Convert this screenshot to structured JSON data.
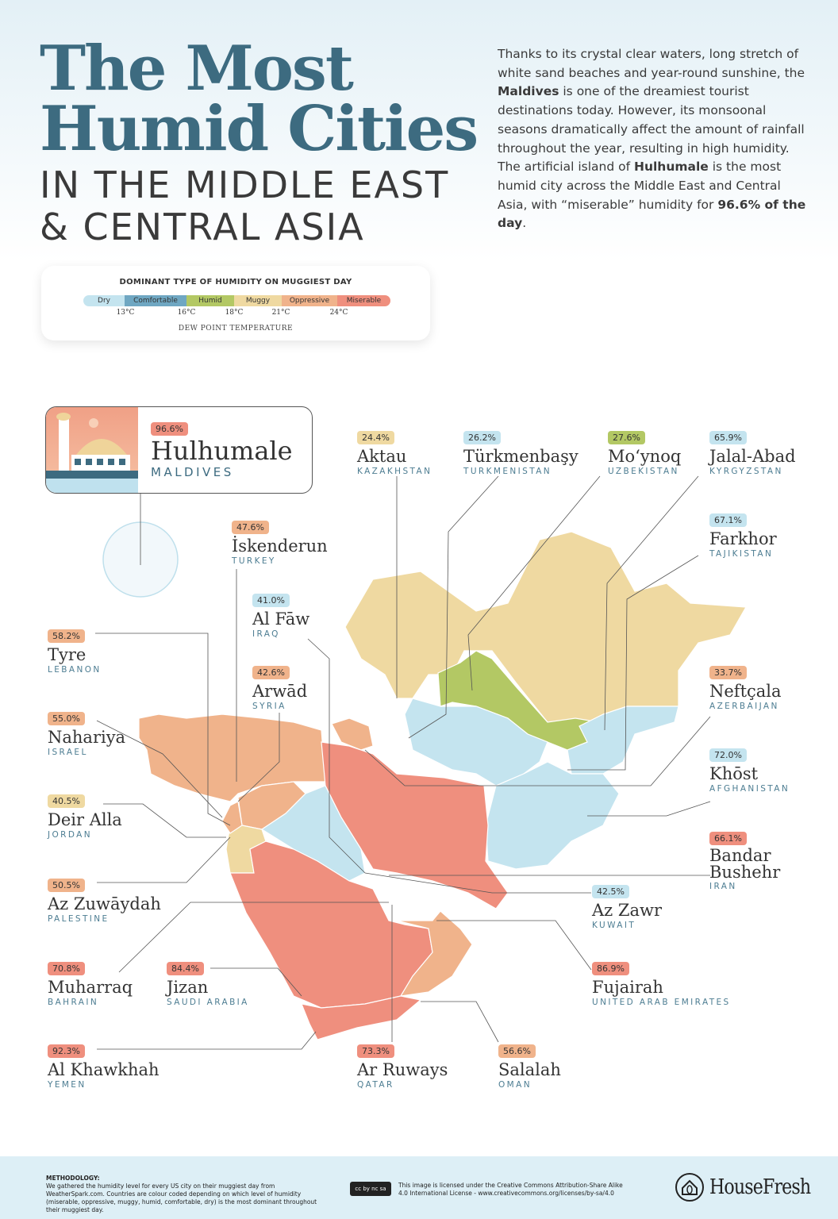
{
  "header": {
    "title_line1": "The Most",
    "title_line2": "Humid Cities",
    "subtitle_line1": "IN THE MIDDLE EAST",
    "subtitle_line2": "& CENTRAL ASIA"
  },
  "intro": {
    "p1": "Thanks to its crystal clear waters, long stretch of white sand beaches and year-round sunshine, the ",
    "b1": "Maldives",
    "p2": " is one of the dreamiest tourist destinations today. However, its monsoonal seasons dramatically affect the amount of rainfall throughout the year, resulting in high humidity. The artificial island of ",
    "b2": "Hulhumale",
    "p3": " is the most humid city across the Middle East and Central Asia, with “miserable” humidity for ",
    "b3": "96.6% of the day",
    "p4": "."
  },
  "legend": {
    "title": "DOMINANT TYPE OF HUMIDITY ON MUGGIEST DAY",
    "categories": [
      {
        "key": "dry",
        "label": "Dry",
        "color": "#c4e4ef"
      },
      {
        "key": "comfortable",
        "label": "Comfortable",
        "color": "#6fa7c2"
      },
      {
        "key": "humid",
        "label": "Humid",
        "color": "#b3c864"
      },
      {
        "key": "muggy",
        "label": "Muggy",
        "color": "#efd9a1"
      },
      {
        "key": "oppressive",
        "label": "Oppressive",
        "color": "#f0b38b"
      },
      {
        "key": "miserable",
        "label": "Miserable",
        "color": "#ef8f7e"
      }
    ],
    "ticks": [
      "13°C",
      "16°C",
      "18°C",
      "21°C",
      "24°C"
    ],
    "axis_label": "DEW POINT TEMPERATURE"
  },
  "featured": {
    "pct": "96.6%",
    "name": "Hulhumale",
    "country": "MALDIVES",
    "category": "miserable"
  },
  "cities": [
    {
      "pct": "24.4%",
      "name": "Aktau",
      "country": "KAZAKHSTAN",
      "category": "muggy"
    },
    {
      "pct": "26.2%",
      "name": "Türkmenbaşy",
      "country": "TURKMENISTAN",
      "category": "dry"
    },
    {
      "pct": "27.6%",
      "name": "Mo‘ynoq",
      "country": "UZBEKISTAN",
      "category": "humid"
    },
    {
      "pct": "65.9%",
      "name": "Jalal-Abad",
      "country": "KYRGYZSTAN",
      "category": "dry"
    },
    {
      "pct": "67.1%",
      "name": "Farkhor",
      "country": "TAJIKISTAN",
      "category": "dry"
    },
    {
      "pct": "47.6%",
      "name": "İskenderun",
      "country": "TURKEY",
      "category": "oppressive"
    },
    {
      "pct": "41.0%",
      "name": "Al Fāw",
      "country": "IRAQ",
      "category": "dry"
    },
    {
      "pct": "58.2%",
      "name": "Tyre",
      "country": "LEBANON",
      "category": "oppressive"
    },
    {
      "pct": "42.6%",
      "name": "Arwād",
      "country": "SYRIA",
      "category": "oppressive"
    },
    {
      "pct": "33.7%",
      "name": "Neftçala",
      "country": "AZERBAIJAN",
      "category": "oppressive"
    },
    {
      "pct": "55.0%",
      "name": "Nahariya",
      "country": "ISRAEL",
      "category": "oppressive"
    },
    {
      "pct": "72.0%",
      "name": "Khōst",
      "country": "AFGHANISTAN",
      "category": "dry"
    },
    {
      "pct": "40.5%",
      "name": "Deir Alla",
      "country": "JORDAN",
      "category": "muggy"
    },
    {
      "pct": "66.1%",
      "name": "Bandar Bushehr",
      "country": "IRAN",
      "category": "miserable"
    },
    {
      "pct": "50.5%",
      "name": "Az Zuwāydah",
      "country": "PALESTINE",
      "category": "oppressive"
    },
    {
      "pct": "42.5%",
      "name": "Az Zawr",
      "country": "KUWAIT",
      "category": "dry"
    },
    {
      "pct": "70.8%",
      "name": "Muharraq",
      "country": "BAHRAIN",
      "category": "miserable"
    },
    {
      "pct": "84.4%",
      "name": "Jizan",
      "country": "SAUDI ARABIA",
      "category": "miserable"
    },
    {
      "pct": "86.9%",
      "name": "Fujairah",
      "country": "UNITED ARAB EMIRATES",
      "category": "miserable"
    },
    {
      "pct": "92.3%",
      "name": "Al Khawkhah",
      "country": "YEMEN",
      "category": "miserable"
    },
    {
      "pct": "73.3%",
      "name": "Ar Ruways",
      "country": "QATAR",
      "category": "miserable"
    },
    {
      "pct": "56.6%",
      "name": "Salalah",
      "country": "OMAN",
      "category": "oppressive"
    }
  ],
  "footer": {
    "methodology_title": "METHODOLOGY:",
    "methodology_text": "We gathered the humidity level for every US city on their muggiest day from WeatherSpark.com. Countries are colour coded depending on which level of humidity (miserable, oppressive, muggy, humid, comfortable, dry) is the most dominant throughout their muggiest day.",
    "cc_badge": "cc by nc sa",
    "license_text": "This image is licensed under the Creative Commons Attribution-Share Alike 4.0 International License - www.creativecommons.org/licenses/by-sa/4.0",
    "brand": "HouseFresh"
  }
}
